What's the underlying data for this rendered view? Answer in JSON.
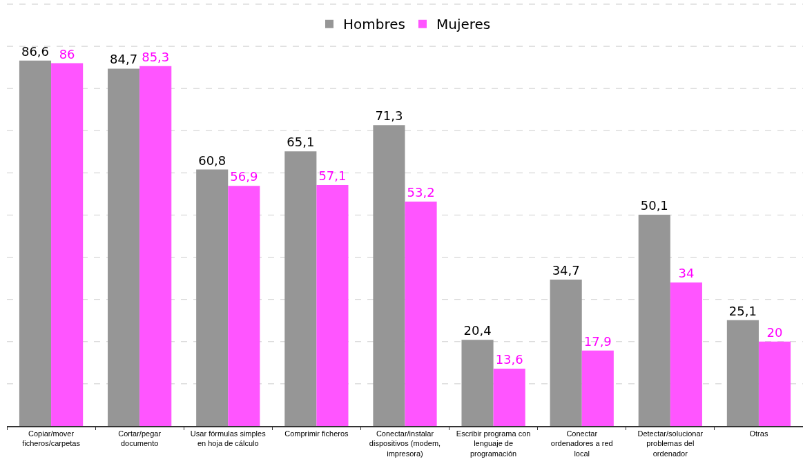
{
  "chart_data": {
    "type": "bar",
    "categories": [
      "Copiar/mover\nficheros/carpetas",
      "Cortar/pegar\ndocumento",
      "Usar fórmulas simples\nen hoja de cálculo",
      "Comprimir ficheros",
      "Conectar/instalar\ndispositivos (modem,\nimpresora)",
      "Escribir programa con\nlenguaje de\nprogramación",
      "Conectar\nordenadores a red\nlocal",
      "Detectar/solucionar\nproblemas del\nordenador",
      "Otras"
    ],
    "series": [
      {
        "name": "Hombres",
        "color": "#969696",
        "values": [
          86.6,
          84.7,
          60.8,
          65.1,
          71.3,
          20.4,
          34.7,
          50.1,
          25.1
        ],
        "value_labels": [
          "86,6",
          "84,7",
          "60,8",
          "65,1",
          "71,3",
          "20,4",
          "34,7",
          "50,1",
          "25,1"
        ]
      },
      {
        "name": "Mujeres",
        "color": "#ff55ff",
        "values": [
          86,
          85.3,
          56.9,
          57.1,
          53.2,
          13.6,
          17.9,
          34,
          20
        ],
        "value_labels": [
          "86",
          "85,3",
          "56,9",
          "57,1",
          "53,2",
          "13,6",
          "17,9",
          "34",
          "20"
        ]
      }
    ],
    "ylim": [
      0,
      100
    ],
    "yticks": [
      {
        "value": 0,
        "label": null
      },
      {
        "value": 10,
        "label": null
      },
      {
        "value": 20,
        "label": null
      },
      {
        "value": 30,
        "label": null
      },
      {
        "value": 40,
        "label": null
      },
      {
        "value": 50,
        "label": null
      },
      {
        "value": 60,
        "label": null
      },
      {
        "value": 70,
        "label": null
      },
      {
        "value": 80,
        "label": null
      },
      {
        "value": 90,
        "label": null
      },
      {
        "value": 100,
        "label": null
      }
    ],
    "tick_labels": "x",
    "grid": "y",
    "legend": "top"
  }
}
